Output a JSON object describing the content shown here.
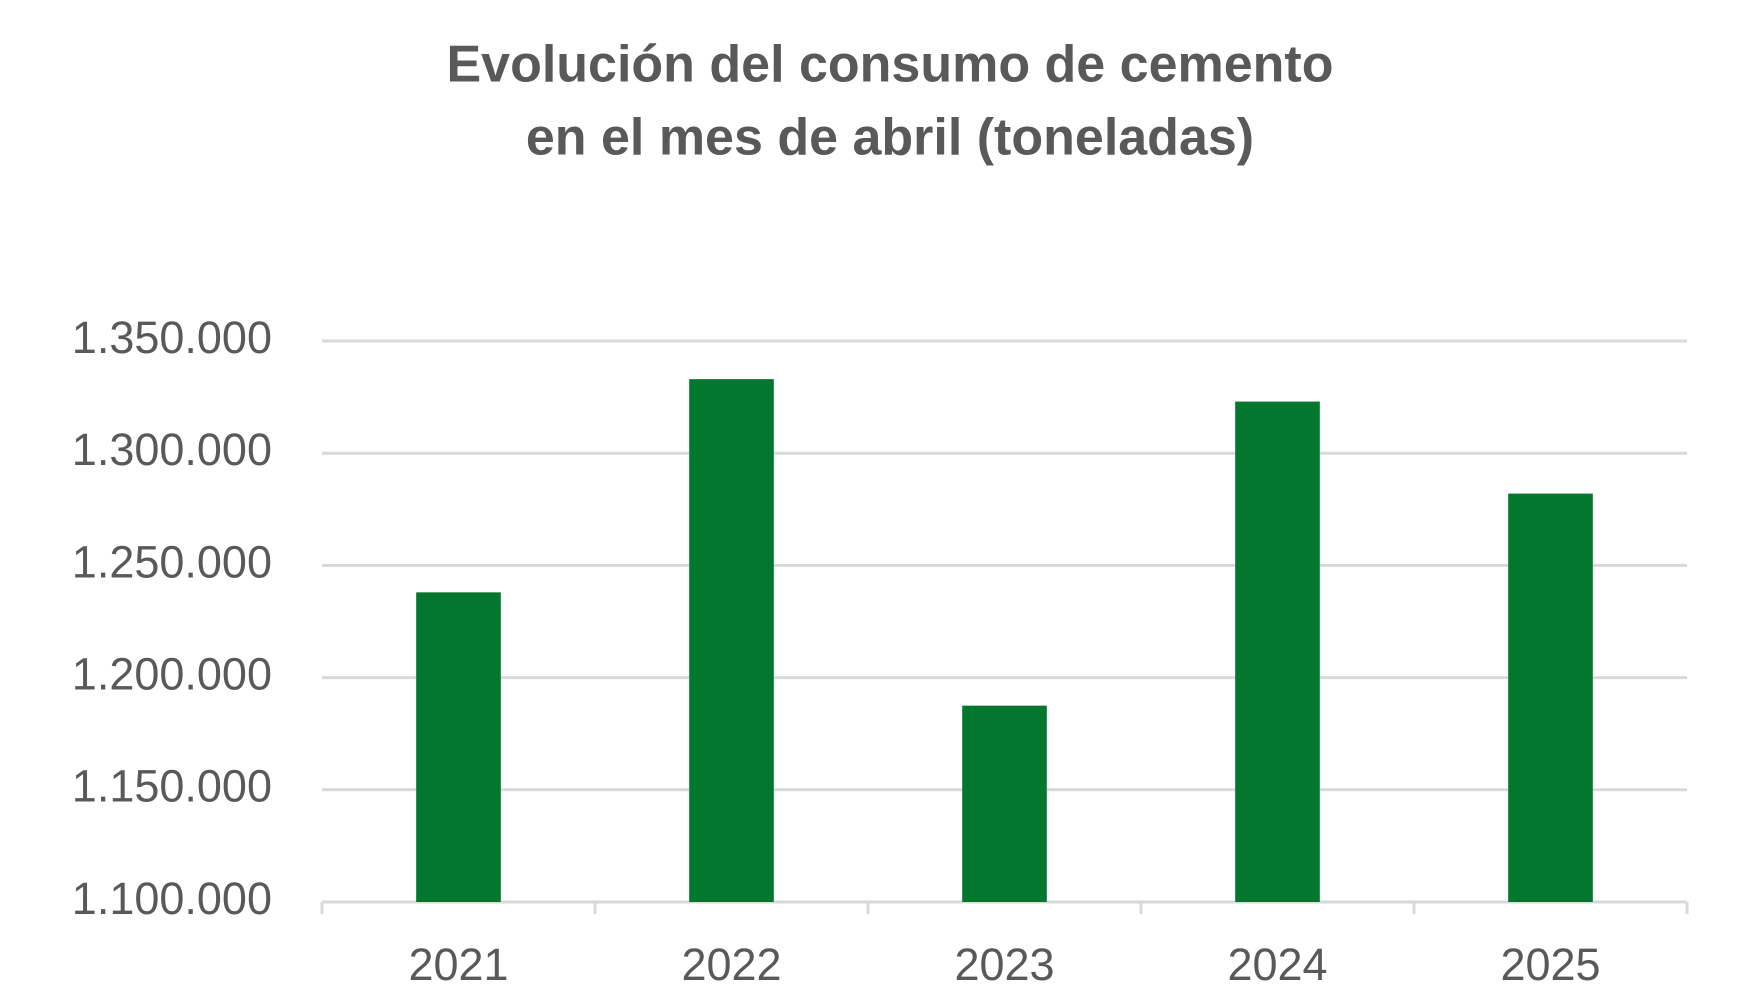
{
  "chart_data": {
    "type": "bar",
    "title": [
      "Evolución del consumo de cemento",
      "en el mes de abril (toneladas)"
    ],
    "categories": [
      "2021",
      "2022",
      "2023",
      "2024",
      "2025"
    ],
    "values": [
      1238000,
      1333000,
      1187500,
      1323000,
      1282000
    ],
    "color": "#03772d",
    "ylim": [
      1100000,
      1350000
    ],
    "yticks": [
      {
        "value": 1100000,
        "label": "1.100.000"
      },
      {
        "value": 1150000,
        "label": "1.150.000"
      },
      {
        "value": 1200000,
        "label": "1.200.000"
      },
      {
        "value": 1250000,
        "label": "1.250.000"
      },
      {
        "value": 1300000,
        "label": "1.300.000"
      },
      {
        "value": 1350000,
        "label": "1.350.000"
      }
    ],
    "grid": true
  }
}
